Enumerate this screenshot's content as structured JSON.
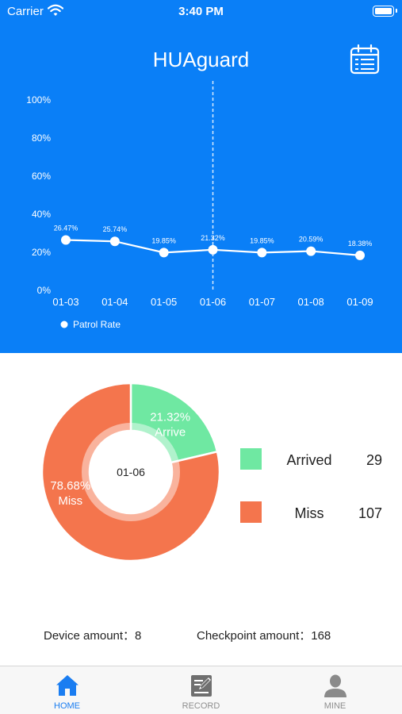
{
  "status_bar": {
    "carrier": "Carrier",
    "time": "3:40 PM"
  },
  "header": {
    "title": "HUAguard",
    "calendar_icon": "calendar-icon"
  },
  "chart_data": [
    {
      "type": "line",
      "x": [
        "01-03",
        "01-04",
        "01-05",
        "01-06",
        "01-07",
        "01-08",
        "01-09"
      ],
      "series": [
        {
          "name": "Patrol Rate",
          "values": [
            26.47,
            25.74,
            19.85,
            21.32,
            19.85,
            20.59,
            18.38
          ],
          "labels": [
            "26.47%",
            "25.74%",
            "19.85%",
            "21.32%",
            "19.85%",
            "20.59%",
            "18.38%"
          ]
        }
      ],
      "y_ticks": [
        "0%",
        "20%",
        "40%",
        "60%",
        "80%",
        "100%"
      ],
      "ylim": [
        0,
        100
      ],
      "highlighted_x": "01-06",
      "legend_position": "bottom-left",
      "grid": false
    },
    {
      "type": "pie",
      "center_label": "01-06",
      "slices": [
        {
          "name": "Arrive",
          "value": 21.32,
          "percent_label": "21.32%",
          "color": "#6fe8a2"
        },
        {
          "name": "Miss",
          "value": 78.68,
          "percent_label": "78.68%",
          "color": "#f4754d"
        }
      ]
    }
  ],
  "legend": {
    "items": [
      {
        "label": "Arrived",
        "value": "29",
        "color": "#6fe8a2"
      },
      {
        "label": "Miss",
        "value": "107",
        "color": "#f4754d"
      }
    ]
  },
  "stats": {
    "device": "Device amount：8",
    "checkpoint": "Checkpoint amount：168"
  },
  "tabs": [
    {
      "label": "HOME",
      "icon": "home-icon",
      "active": true
    },
    {
      "label": "RECORD",
      "icon": "record-icon",
      "active": false
    },
    {
      "label": "MINE",
      "icon": "person-icon",
      "active": false
    }
  ],
  "colors": {
    "header_bg": "#0a7ff7",
    "tab_active": "#1a7df1",
    "tab_inactive": "#8e8e8e"
  }
}
